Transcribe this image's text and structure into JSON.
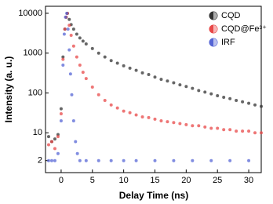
{
  "chart_data": {
    "type": "scatter",
    "xlabel": "Delay Time (ns)",
    "ylabel": "Intensity (a. u.)",
    "xlim": [
      -2.5,
      32
    ],
    "xticks": [
      0,
      5,
      10,
      15,
      20,
      25,
      30
    ],
    "ylim": [
      1,
      15000
    ],
    "yticks": [
      2,
      10,
      100,
      1000,
      10000
    ],
    "log_y": true,
    "legend": "upper right",
    "series": [
      {
        "name": "CQD",
        "color": "#333333",
        "x": [
          -2,
          -1.5,
          -1,
          -0.5,
          0,
          0.3,
          0.6,
          0.8,
          1,
          1.3,
          1.6,
          2,
          2.5,
          3,
          3.5,
          4,
          5,
          6,
          7,
          8,
          9,
          10,
          11,
          12,
          13,
          14,
          15,
          16,
          17,
          18,
          19,
          20,
          21,
          22,
          23,
          24,
          25,
          26,
          27,
          28,
          29,
          30,
          31,
          32
        ],
        "values": [
          8,
          6,
          7,
          9,
          40,
          800,
          4000,
          8000,
          10000,
          7000,
          5200,
          4000,
          3000,
          2400,
          2000,
          1700,
          1300,
          1000,
          800,
          650,
          560,
          480,
          420,
          370,
          320,
          290,
          250,
          220,
          200,
          180,
          160,
          145,
          130,
          115,
          105,
          95,
          85,
          78,
          72,
          65,
          60,
          55,
          50,
          46
        ]
      },
      {
        "name": "CQD@Fe³⁺",
        "color": "#e84848",
        "x": [
          -2,
          -1.5,
          -1,
          -0.5,
          0,
          0.3,
          0.6,
          0.8,
          1,
          1.3,
          1.6,
          2,
          2.5,
          3,
          3.5,
          4,
          5,
          6,
          7,
          8,
          9,
          10,
          11,
          12,
          13,
          14,
          15,
          16,
          17,
          18,
          19,
          20,
          21,
          22,
          23,
          24,
          25,
          26,
          27,
          28,
          29,
          30,
          31,
          32
        ],
        "values": [
          5,
          6,
          4,
          8,
          30,
          700,
          4000,
          8000,
          10000,
          5000,
          2800,
          1500,
          800,
          500,
          330,
          230,
          140,
          90,
          65,
          50,
          42,
          35,
          32,
          28,
          25,
          24,
          22,
          20,
          19,
          18,
          17,
          16,
          15,
          15,
          14,
          13,
          13,
          12,
          12,
          11,
          11,
          11,
          10,
          10
        ]
      },
      {
        "name": "IRF",
        "color": "#5565d5",
        "x": [
          -2,
          -1.5,
          -1,
          -0.5,
          0,
          0.3,
          0.5,
          0.7,
          0.9,
          1.1,
          1.3,
          1.5,
          1.7,
          2,
          2.3,
          2.6,
          3,
          4,
          6,
          8,
          10,
          12,
          15,
          18,
          21,
          24,
          27,
          30
        ],
        "values": [
          2,
          2,
          2,
          3,
          20,
          500,
          3000,
          8000,
          10000,
          4000,
          1200,
          300,
          90,
          20,
          6,
          3,
          2,
          2,
          2,
          2,
          2,
          2,
          2,
          2,
          2,
          2,
          2,
          2
        ]
      }
    ]
  }
}
